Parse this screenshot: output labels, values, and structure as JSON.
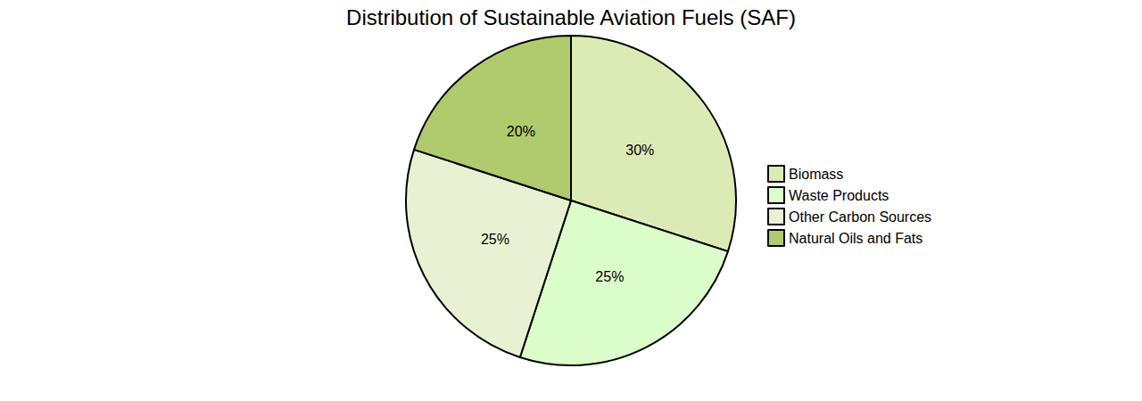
{
  "chart_data": {
    "type": "pie",
    "title": "Distribution of Sustainable Aviation Fuels (SAF)",
    "categories": [
      "Biomass",
      "Waste Products",
      "Other Carbon Sources",
      "Natural Oils and Fats"
    ],
    "values": [
      30,
      25,
      25,
      20
    ],
    "value_labels": [
      "30%",
      "25%",
      "25%",
      "20%"
    ],
    "colors": [
      "#dcebb5",
      "#dbfdca",
      "#e8f2d3",
      "#b0ca6e"
    ],
    "data_labels": true,
    "legend": "right"
  }
}
